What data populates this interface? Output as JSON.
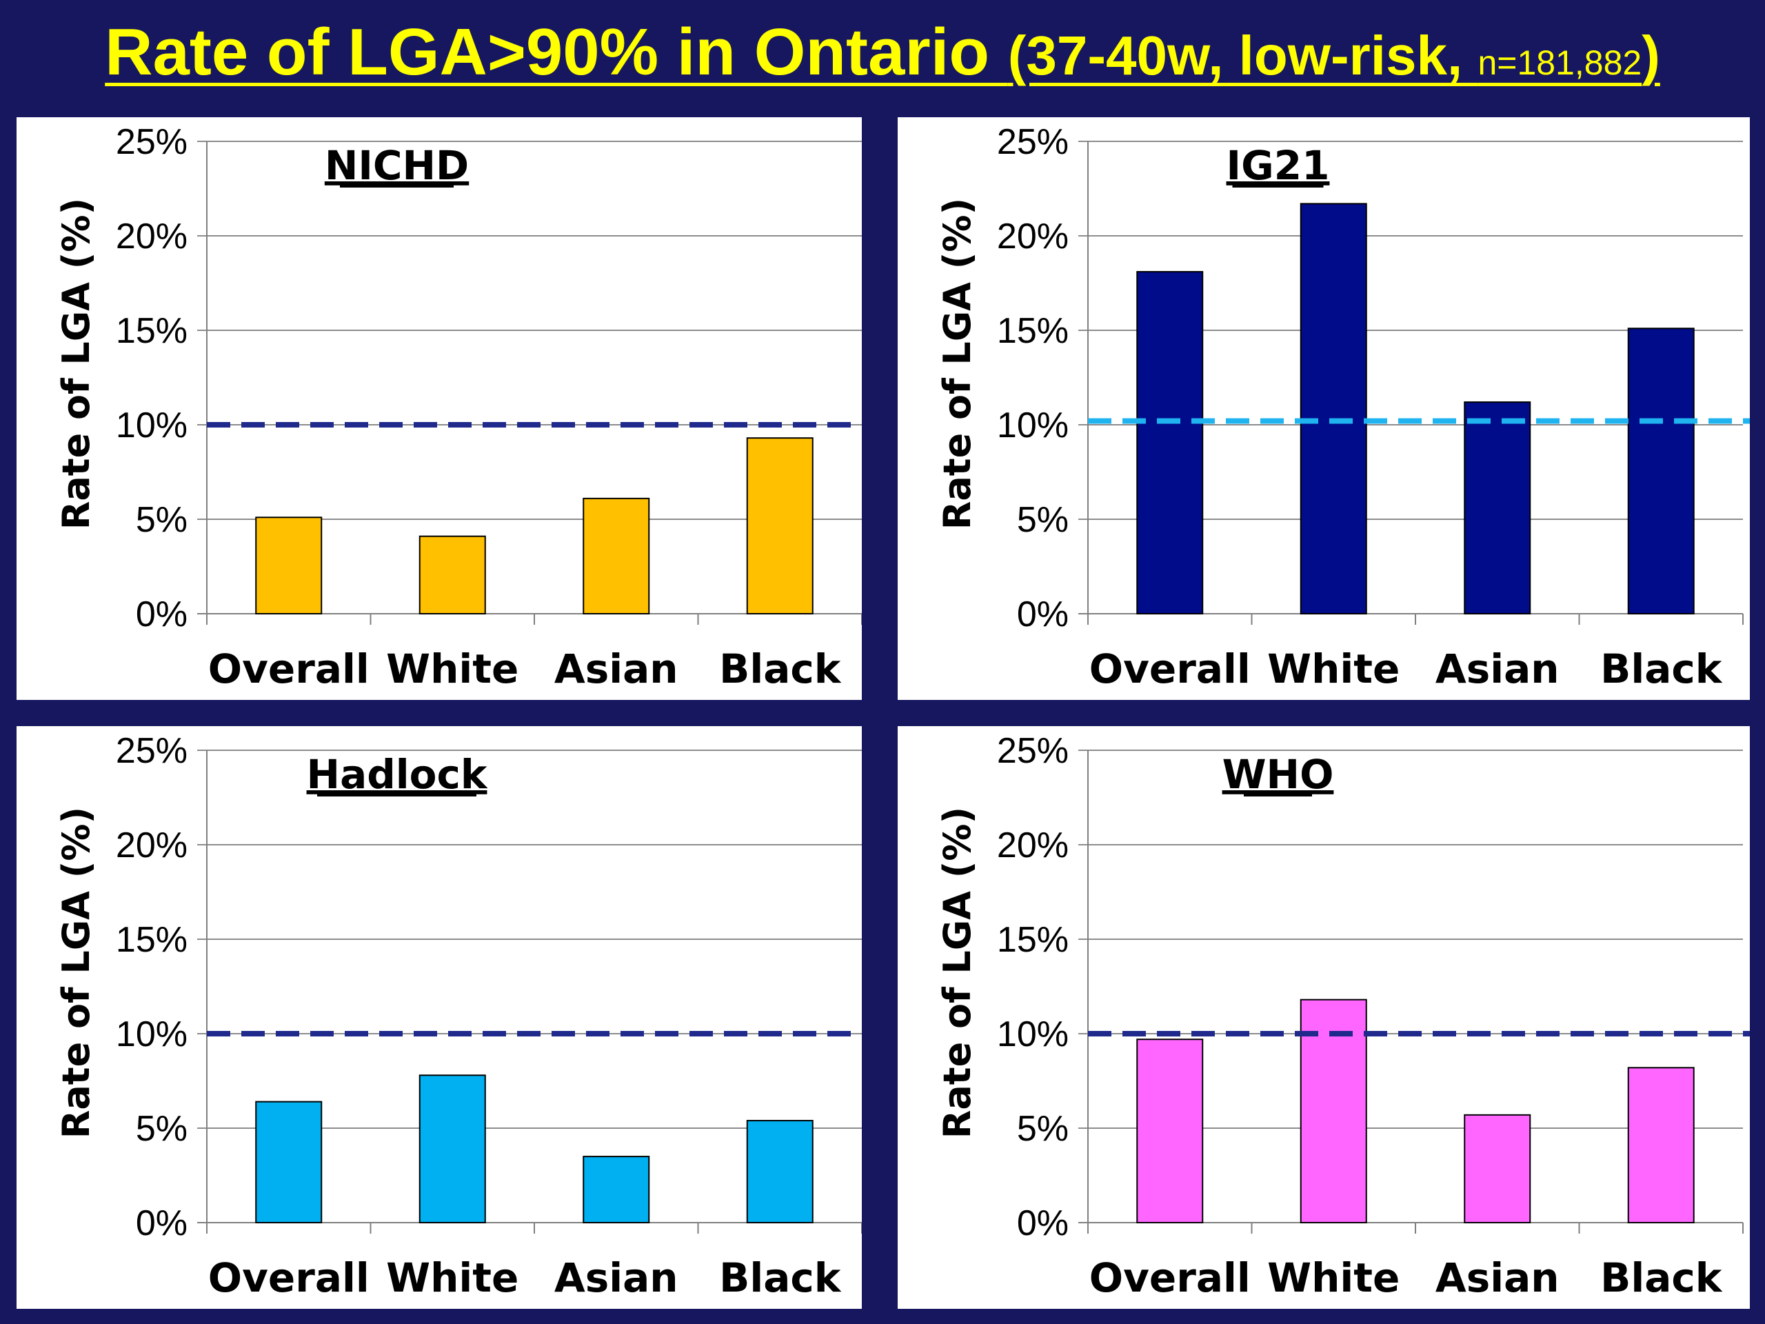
{
  "slide_title": {
    "main": "Rate of LGA>90% in Ontario ",
    "paren_open": "(37-40w, low-risk, ",
    "n": "n=181,882",
    "paren_close": ")"
  },
  "colors": {
    "background": "#16175e",
    "title": "#ffff00",
    "reference_line_dark": "#1f2a8c",
    "reference_line_light": "#1fb4f0"
  },
  "chart_data": [
    {
      "type": "bar",
      "title": "NICHD",
      "ylabel": "Rate of LGA (%)",
      "categories": [
        "Overall",
        "White",
        "Asian",
        "Black"
      ],
      "values": [
        5.1,
        4.1,
        6.1,
        9.3
      ],
      "ylim": [
        0,
        25
      ],
      "yticks": [
        "0%",
        "5%",
        "10%",
        "15%",
        "20%",
        "25%"
      ],
      "reference_line": 10,
      "bar_color": "#ffc000",
      "reference_color": "#1f2a8c",
      "grid": true
    },
    {
      "type": "bar",
      "title": "IG21",
      "ylabel": "Rate of LGA (%)",
      "categories": [
        "Overall",
        "White",
        "Asian",
        "Black"
      ],
      "values": [
        18.1,
        21.7,
        11.2,
        15.1
      ],
      "ylim": [
        0,
        25
      ],
      "yticks": [
        "0%",
        "5%",
        "10%",
        "15%",
        "20%",
        "25%"
      ],
      "reference_line": 10.2,
      "bar_color": "#000c8a",
      "reference_color": "#1fb4f0",
      "grid": true
    },
    {
      "type": "bar",
      "title": "Hadlock",
      "ylabel": "Rate of LGA (%)",
      "categories": [
        "Overall",
        "White",
        "Asian",
        "Black"
      ],
      "values": [
        6.4,
        7.8,
        3.5,
        5.4
      ],
      "ylim": [
        0,
        25
      ],
      "yticks": [
        "0%",
        "5%",
        "10%",
        "15%",
        "20%",
        "25%"
      ],
      "reference_line": 10,
      "bar_color": "#00b0f0",
      "reference_color": "#1f2a8c",
      "grid": true
    },
    {
      "type": "bar",
      "title": "WHO",
      "ylabel": "Rate of LGA (%)",
      "categories": [
        "Overall",
        "White",
        "Asian",
        "Black"
      ],
      "values": [
        9.7,
        11.8,
        5.7,
        8.2
      ],
      "ylim": [
        0,
        25
      ],
      "yticks": [
        "0%",
        "5%",
        "10%",
        "15%",
        "20%",
        "25%"
      ],
      "reference_line": 10,
      "bar_color": "#ff66ff",
      "reference_color": "#1f2a8c",
      "grid": true
    }
  ]
}
